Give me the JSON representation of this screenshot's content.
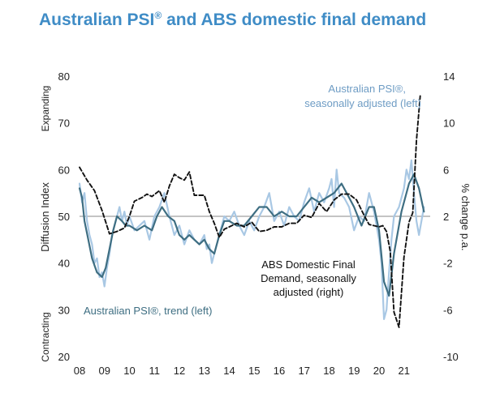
{
  "title": {
    "main": "Australian PSI",
    "reg": "®",
    "rest": " and ABS domestic final demand"
  },
  "chart_data": {
    "type": "line",
    "ylabel_left": "Diffusion Index",
    "ylabel_right": "% change p.a.",
    "expanding_label": "Expanding",
    "contracting_label": "Contracting",
    "x_tick_labels": [
      "08",
      "09",
      "10",
      "11",
      "12",
      "13",
      "14",
      "15",
      "16",
      "17",
      "18",
      "19",
      "20",
      "21"
    ],
    "x_ticks": [
      2008,
      2009,
      2010,
      2011,
      2012,
      2013,
      2014,
      2015,
      2016,
      2017,
      2018,
      2019,
      2020,
      2021
    ],
    "xlim": [
      2008,
      2022.05
    ],
    "ylim_left": [
      20,
      80
    ],
    "yticks_left": [
      20,
      30,
      40,
      50,
      60,
      70,
      80
    ],
    "ylim_right": [
      -10,
      14
    ],
    "yticks_right": [
      -10,
      -6,
      -2,
      2,
      6,
      10,
      14
    ],
    "reference_line_left": 50,
    "annotations": {
      "psi_sa": [
        "Australian PSI®,",
        "seasonally adjusted (left)"
      ],
      "abs": [
        "ABS Domestic Final",
        "Demand, seasonally",
        "adjusted (right)"
      ],
      "psi_trend": "Australian PSI®, trend (left)"
    },
    "series": [
      {
        "key": "psi_sa",
        "axis": "left",
        "color": "#a9c8e4",
        "x": [
          2008.0,
          2008.1,
          2008.2,
          2008.3,
          2008.4,
          2008.5,
          2008.6,
          2008.7,
          2008.8,
          2008.9,
          2009.0,
          2009.1,
          2009.2,
          2009.3,
          2009.4,
          2009.5,
          2009.6,
          2009.7,
          2009.8,
          2009.9,
          2010.0,
          2010.2,
          2010.4,
          2010.6,
          2010.8,
          2011.0,
          2011.2,
          2011.4,
          2011.6,
          2011.8,
          2012.0,
          2012.2,
          2012.4,
          2012.6,
          2012.8,
          2013.0,
          2013.1,
          2013.2,
          2013.3,
          2013.4,
          2013.6,
          2013.8,
          2014.0,
          2014.2,
          2014.4,
          2014.6,
          2014.8,
          2015.0,
          2015.2,
          2015.4,
          2015.6,
          2015.8,
          2016.0,
          2016.2,
          2016.4,
          2016.6,
          2016.8,
          2017.0,
          2017.2,
          2017.4,
          2017.6,
          2017.8,
          2018.0,
          2018.1,
          2018.2,
          2018.3,
          2018.4,
          2018.6,
          2018.8,
          2019.0,
          2019.2,
          2019.4,
          2019.6,
          2019.8,
          2020.0,
          2020.1,
          2020.2,
          2020.3,
          2020.4,
          2020.5,
          2020.6,
          2020.8,
          2021.0,
          2021.1,
          2021.2,
          2021.3,
          2021.4,
          2021.5,
          2021.6,
          2021.8
        ],
        "y": [
          57,
          53,
          55,
          49,
          46,
          44,
          40,
          41,
          37,
          38,
          35,
          39,
          42,
          46,
          48,
          50,
          52,
          49,
          51,
          48,
          50,
          47,
          48,
          49,
          45,
          50,
          52,
          55,
          50,
          46,
          48,
          44,
          47,
          45,
          44,
          46,
          43,
          44,
          40,
          42,
          46,
          50,
          49,
          51,
          48,
          46,
          49,
          47,
          50,
          52,
          55,
          49,
          51,
          48,
          52,
          50,
          49,
          53,
          56,
          51,
          55,
          53,
          56,
          58,
          52,
          60,
          55,
          54,
          52,
          47,
          50,
          49,
          55,
          51,
          45,
          40,
          28,
          30,
          38,
          45,
          50,
          52,
          56,
          60,
          58,
          62,
          55,
          49,
          46,
          52
        ]
      },
      {
        "key": "psi_trend",
        "axis": "left",
        "color": "#3e6e82",
        "x": [
          2008.0,
          2008.1,
          2008.2,
          2008.35,
          2008.5,
          2008.7,
          2008.9,
          2009.05,
          2009.2,
          2009.35,
          2009.5,
          2009.7,
          2009.85,
          2010.0,
          2010.3,
          2010.6,
          2010.9,
          2011.1,
          2011.3,
          2011.55,
          2011.8,
          2012.0,
          2012.2,
          2012.4,
          2012.6,
          2012.8,
          2013.0,
          2013.2,
          2013.4,
          2013.6,
          2013.8,
          2014.0,
          2014.3,
          2014.6,
          2014.9,
          2015.2,
          2015.5,
          2015.8,
          2016.1,
          2016.4,
          2016.7,
          2017.0,
          2017.3,
          2017.6,
          2017.9,
          2018.2,
          2018.5,
          2018.8,
          2019.0,
          2019.3,
          2019.6,
          2019.8,
          2020.0,
          2020.2,
          2020.4,
          2020.6,
          2020.9,
          2021.2,
          2021.4,
          2021.6,
          2021.8
        ],
        "y": [
          56,
          54,
          49,
          45,
          41,
          38,
          37,
          39,
          43,
          47,
          50,
          49,
          48,
          48,
          47,
          48,
          47,
          50,
          52,
          50,
          49,
          46,
          45,
          46,
          45,
          44,
          45,
          43,
          42,
          46,
          49,
          49,
          48,
          48,
          50,
          52,
          52,
          50,
          51,
          50,
          50,
          52,
          54,
          53,
          54,
          55,
          57,
          54,
          52,
          48,
          52,
          52,
          47,
          36,
          33,
          42,
          51,
          57,
          59,
          56,
          51
        ]
      },
      {
        "key": "abs",
        "axis": "right",
        "color": "#111111",
        "x": [
          2008.0,
          2008.3,
          2008.6,
          2008.9,
          2009.2,
          2009.5,
          2009.8,
          2010.0,
          2010.2,
          2010.5,
          2010.7,
          2010.9,
          2011.2,
          2011.4,
          2011.6,
          2011.8,
          2012.0,
          2012.2,
          2012.4,
          2012.6,
          2012.8,
          2013.0,
          2013.2,
          2013.4,
          2013.6,
          2013.8,
          2014.0,
          2014.3,
          2014.6,
          2014.9,
          2015.2,
          2015.5,
          2015.8,
          2016.1,
          2016.4,
          2016.7,
          2017.0,
          2017.3,
          2017.6,
          2017.9,
          2018.2,
          2018.5,
          2018.8,
          2019.1,
          2019.4,
          2019.6,
          2019.8,
          2020.0,
          2020.15,
          2020.3,
          2020.45,
          2020.6,
          2020.8,
          2021.0,
          2021.2,
          2021.35,
          2021.5,
          2021.65
        ],
        "y": [
          6.2,
          5.1,
          4.2,
          2.5,
          0.5,
          0.7,
          1.0,
          2.0,
          3.3,
          3.6,
          3.9,
          3.7,
          4.2,
          3.2,
          4.6,
          5.6,
          5.3,
          5.1,
          5.8,
          3.8,
          3.8,
          3.8,
          2.4,
          1.4,
          0.2,
          0.9,
          1.1,
          1.4,
          1.1,
          1.5,
          0.7,
          0.8,
          1.1,
          1.1,
          1.4,
          1.4,
          2.1,
          1.9,
          3.1,
          2.4,
          3.4,
          3.9,
          3.9,
          3.4,
          2.1,
          1.3,
          1.2,
          1.1,
          1.2,
          0.7,
          -1.0,
          -6.2,
          -7.5,
          -1.5,
          1.5,
          2.3,
          8.5,
          12.3
        ]
      }
    ]
  },
  "colors": {
    "title": "#3f8cc6",
    "psi_sa_label": "#6e9cc4",
    "psi_trend_label": "#3e6e82",
    "axis_text": "#222222",
    "reference_line": "#888888"
  }
}
